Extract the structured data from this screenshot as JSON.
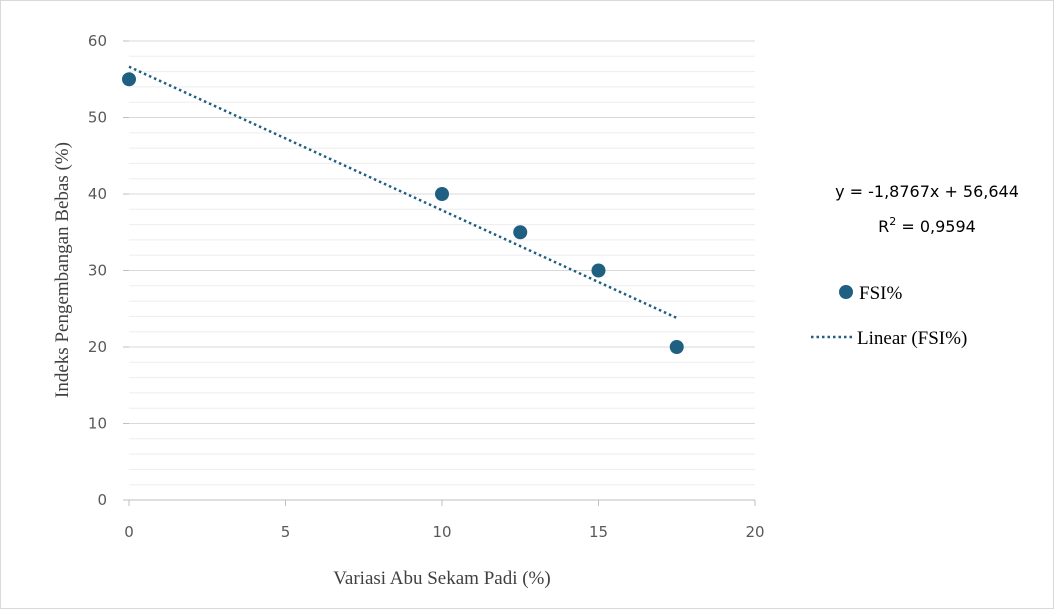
{
  "chart_data": {
    "type": "scatter",
    "xlabel": "Variasi Abu Sekam Padi (%)",
    "ylabel": "Indeks Pengembangan Bebas (%)",
    "xlim": [
      0,
      20
    ],
    "ylim": [
      0,
      60
    ],
    "x_ticks": [
      "0",
      "5",
      "10",
      "15",
      "20"
    ],
    "y_ticks": [
      "0",
      "10",
      "20",
      "30",
      "40",
      "50",
      "60"
    ],
    "grid": true,
    "legend_position": "right",
    "series": [
      {
        "name": "FSI%",
        "color": "#1f5f82",
        "x": [
          0,
          10,
          12.5,
          15,
          17.5
        ],
        "y": [
          55,
          40,
          35,
          30,
          20
        ]
      }
    ],
    "trendline": {
      "name": "Linear (FSI%)",
      "type": "linear",
      "slope": -1.8767,
      "intercept": 56.644,
      "x_range": [
        0,
        17.5
      ],
      "style": "dotted",
      "color": "#1f5f82",
      "equation": "y = -1,8767x + 56,644",
      "r2_prefix": "R",
      "r2_value": " = 0,9594"
    }
  }
}
